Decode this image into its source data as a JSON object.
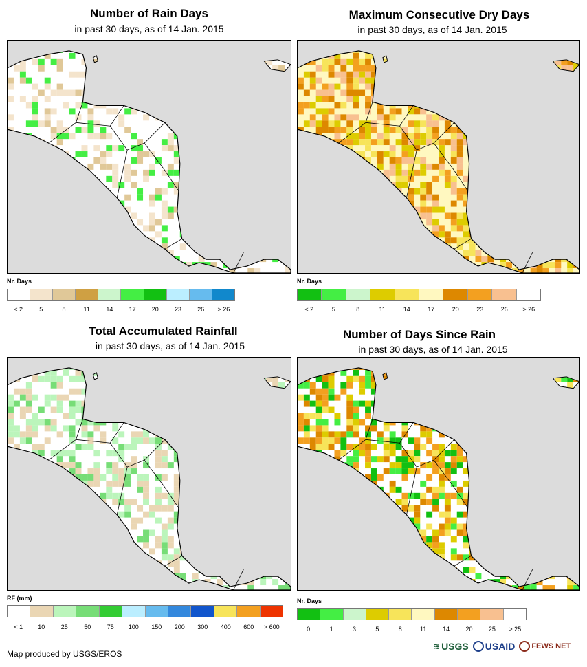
{
  "panels": [
    {
      "title": "Number of Rain Days",
      "subtitle": "in past 30 days, as of 14 Jan. 2015",
      "legend_label": "Nr. Days",
      "legend_colors": [
        "#ffffff",
        "#f4e4cc",
        "#e0c898",
        "#cfa043",
        "#ccf5cc",
        "#44ee44",
        "#12c012",
        "#bbeeff",
        "#66bbee",
        "#1188cc"
      ],
      "legend_ticks": [
        "< 2",
        "5",
        "8",
        "11",
        "14",
        "17",
        "20",
        "23",
        "26",
        "> 26"
      ],
      "scatter_palette": [
        "#f4e4cc",
        "#e0c898",
        "#f4e4cc",
        "#44ee44"
      ],
      "base_fill": "#ffffff"
    },
    {
      "title": "Maximum Consecutive Dry Days",
      "subtitle": "in past 30 days, as of 14 Jan. 2015",
      "legend_label": "Nr. Days",
      "legend_colors": [
        "#12c012",
        "#44ee44",
        "#ccf5cc",
        "#ddcc00",
        "#f7e45a",
        "#fff8c0",
        "#dd8800",
        "#f3a020",
        "#f8c090",
        "#ffffff"
      ],
      "legend_ticks": [
        "< 2",
        "5",
        "8",
        "11",
        "14",
        "17",
        "20",
        "23",
        "26",
        "> 26"
      ],
      "scatter_palette": [
        "#ddcc00",
        "#f7e45a",
        "#fff8c0",
        "#dd8800",
        "#f3a020",
        "#f8c090"
      ],
      "base_fill": "#fff8c0"
    },
    {
      "title": "Total Accumulated Rainfall",
      "subtitle": "in past 30 days, as of 14 Jan. 2015",
      "legend_label": "RF (mm)",
      "legend_colors": [
        "#ffffff",
        "#ead6b4",
        "#bbf5bb",
        "#77dd77",
        "#33cc33",
        "#bbeeff",
        "#66bbee",
        "#3388dd",
        "#1155cc",
        "#f7e45a",
        "#f3a020",
        "#ee3300"
      ],
      "legend_ticks": [
        "< 1",
        "10",
        "25",
        "50",
        "75",
        "100",
        "150",
        "200",
        "300",
        "400",
        "600",
        "> 600"
      ],
      "scatter_palette": [
        "#ead6b4",
        "#bbf5bb",
        "#77dd77",
        "#ead6b4",
        "#bbf5bb"
      ],
      "base_fill": "#ffffff"
    },
    {
      "title": "Number of Days Since Rain",
      "subtitle": "in past 30 days, as of 14 Jan. 2015",
      "legend_label": "Nr. Days",
      "legend_colors": [
        "#12c012",
        "#44ee44",
        "#ccf5cc",
        "#ddcc00",
        "#f7e45a",
        "#fff8c0",
        "#dd8800",
        "#f3a020",
        "#f8c090",
        "#ffffff"
      ],
      "legend_ticks": [
        "0",
        "1",
        "3",
        "5",
        "8",
        "11",
        "14",
        "20",
        "25",
        "> 25"
      ],
      "scatter_palette": [
        "#ddcc00",
        "#f3a020",
        "#12c012",
        "#44ee44",
        "#dd8800",
        "#f7e45a"
      ],
      "base_fill": "#ffffff"
    }
  ],
  "footer": {
    "credit": "Map produced by USGS/EROS"
  },
  "logos": {
    "usgs": "USGS",
    "usaid": "USAID",
    "fews": "FEWS NET"
  }
}
